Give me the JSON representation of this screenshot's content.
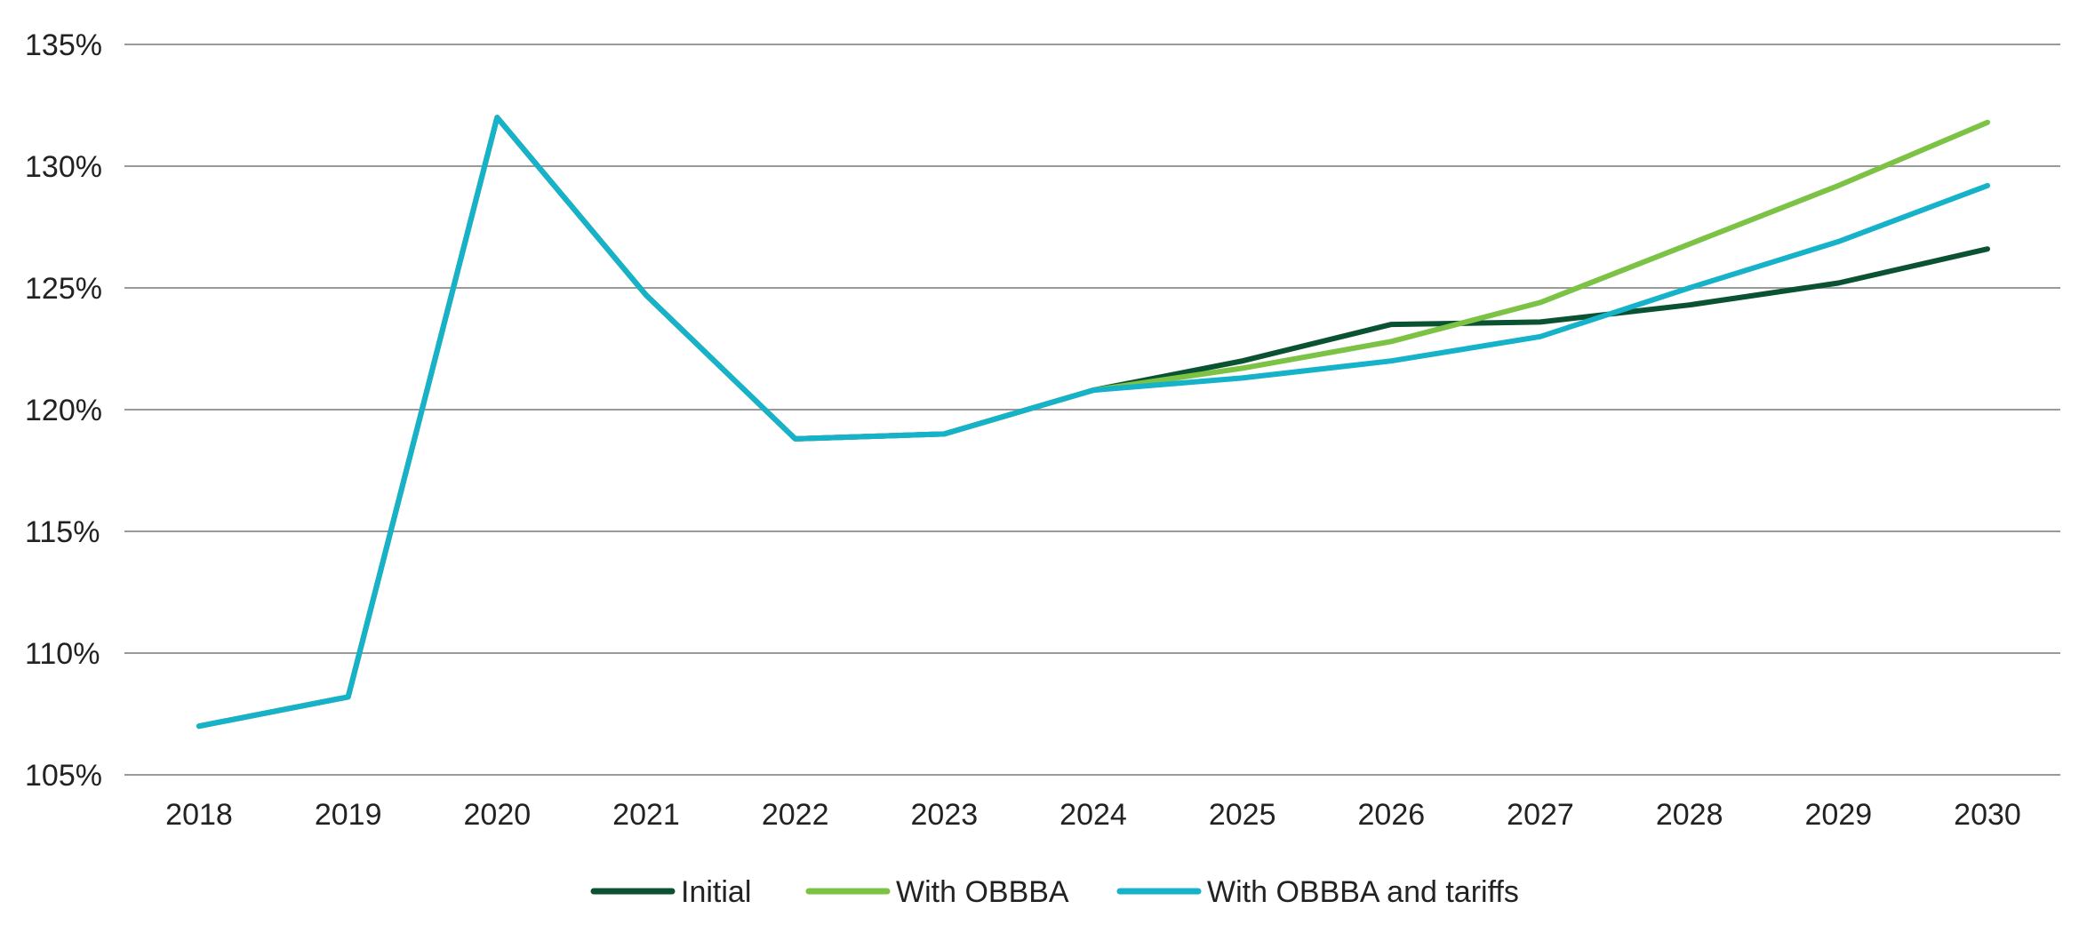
{
  "chart_data": {
    "type": "line",
    "title": "",
    "xlabel": "",
    "ylabel": "",
    "x": [
      "2018",
      "2019",
      "2020",
      "2021",
      "2022",
      "2023",
      "2024",
      "2025",
      "2026",
      "2027",
      "2028",
      "2029",
      "2030"
    ],
    "ylim": [
      105,
      135
    ],
    "y_ticks": [
      105,
      110,
      115,
      120,
      125,
      130,
      135
    ],
    "y_tick_labels": [
      "105%",
      "110%",
      "115%",
      "120%",
      "125%",
      "130%",
      "135%"
    ],
    "grid": "horizontal",
    "legend_position": "bottom-center",
    "series": [
      {
        "name": "Initial",
        "color": "#0b5232",
        "values": [
          107.0,
          108.2,
          132.0,
          124.7,
          118.8,
          119.0,
          120.8,
          122.0,
          123.5,
          123.6,
          124.3,
          125.2,
          126.6
        ]
      },
      {
        "name": "With OBBBA",
        "color": "#7cc245",
        "values": [
          107.0,
          108.2,
          132.0,
          124.7,
          118.8,
          119.0,
          120.8,
          121.7,
          122.8,
          124.4,
          126.8,
          129.2,
          131.8
        ]
      },
      {
        "name": "With OBBBA and tariffs",
        "color": "#15b2c9",
        "values": [
          107.0,
          108.2,
          132.0,
          124.7,
          118.8,
          119.0,
          120.8,
          121.3,
          122.0,
          123.0,
          125.0,
          126.9,
          129.2
        ]
      }
    ]
  }
}
